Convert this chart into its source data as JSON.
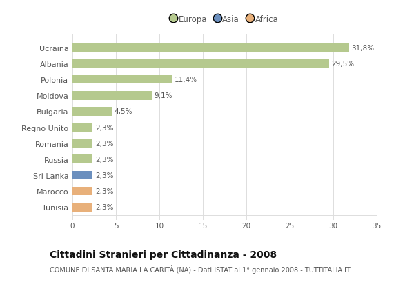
{
  "categories": [
    "Ucraina",
    "Albania",
    "Polonia",
    "Moldova",
    "Bulgaria",
    "Regno Unito",
    "Romania",
    "Russia",
    "Sri Lanka",
    "Marocco",
    "Tunisia"
  ],
  "values": [
    31.8,
    29.5,
    11.4,
    9.1,
    4.5,
    2.3,
    2.3,
    2.3,
    2.3,
    2.3,
    2.3
  ],
  "labels": [
    "31,8%",
    "29,5%",
    "11,4%",
    "9,1%",
    "4,5%",
    "2,3%",
    "2,3%",
    "2,3%",
    "2,3%",
    "2,3%",
    "2,3%"
  ],
  "bar_colors": [
    "#b5c98e",
    "#b5c98e",
    "#b5c98e",
    "#b5c98e",
    "#b5c98e",
    "#b5c98e",
    "#b5c98e",
    "#b5c98e",
    "#6b8fbe",
    "#e8b07a",
    "#e8b07a"
  ],
  "legend_labels": [
    "Europa",
    "Asia",
    "Africa"
  ],
  "legend_colors": [
    "#b5c98e",
    "#6b8fbe",
    "#e8b07a"
  ],
  "xlim": [
    0,
    35
  ],
  "xticks": [
    0,
    5,
    10,
    15,
    20,
    25,
    30,
    35
  ],
  "title": "Cittadini Stranieri per Cittadinanza - 2008",
  "subtitle": "COMUNE DI SANTA MARIA LA CARITÀ (NA) - Dati ISTAT al 1° gennaio 2008 - TUTTITALIA.IT",
  "bg_color": "#ffffff",
  "plot_bg_color": "#ffffff",
  "bar_height": 0.55,
  "label_fontsize": 7.5,
  "ytick_fontsize": 8,
  "xtick_fontsize": 7.5,
  "title_fontsize": 10,
  "subtitle_fontsize": 7,
  "grid_color": "#dddddd",
  "text_color": "#555555",
  "title_color": "#111111"
}
